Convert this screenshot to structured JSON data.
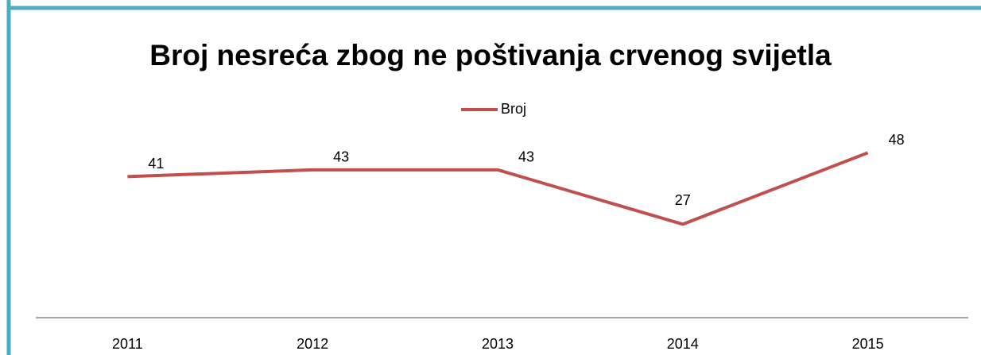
{
  "chart_data": {
    "type": "line",
    "title": "Broj nesreća zbog ne poštivanja crvenog svijetla",
    "categories": [
      "2011",
      "2012",
      "2013",
      "2014",
      "2015"
    ],
    "series": [
      {
        "name": "Broj",
        "color": "#c0504d",
        "values": [
          41,
          43,
          43,
          27,
          48
        ]
      }
    ],
    "ylim": [
      0,
      60
    ],
    "legend": "top"
  }
}
